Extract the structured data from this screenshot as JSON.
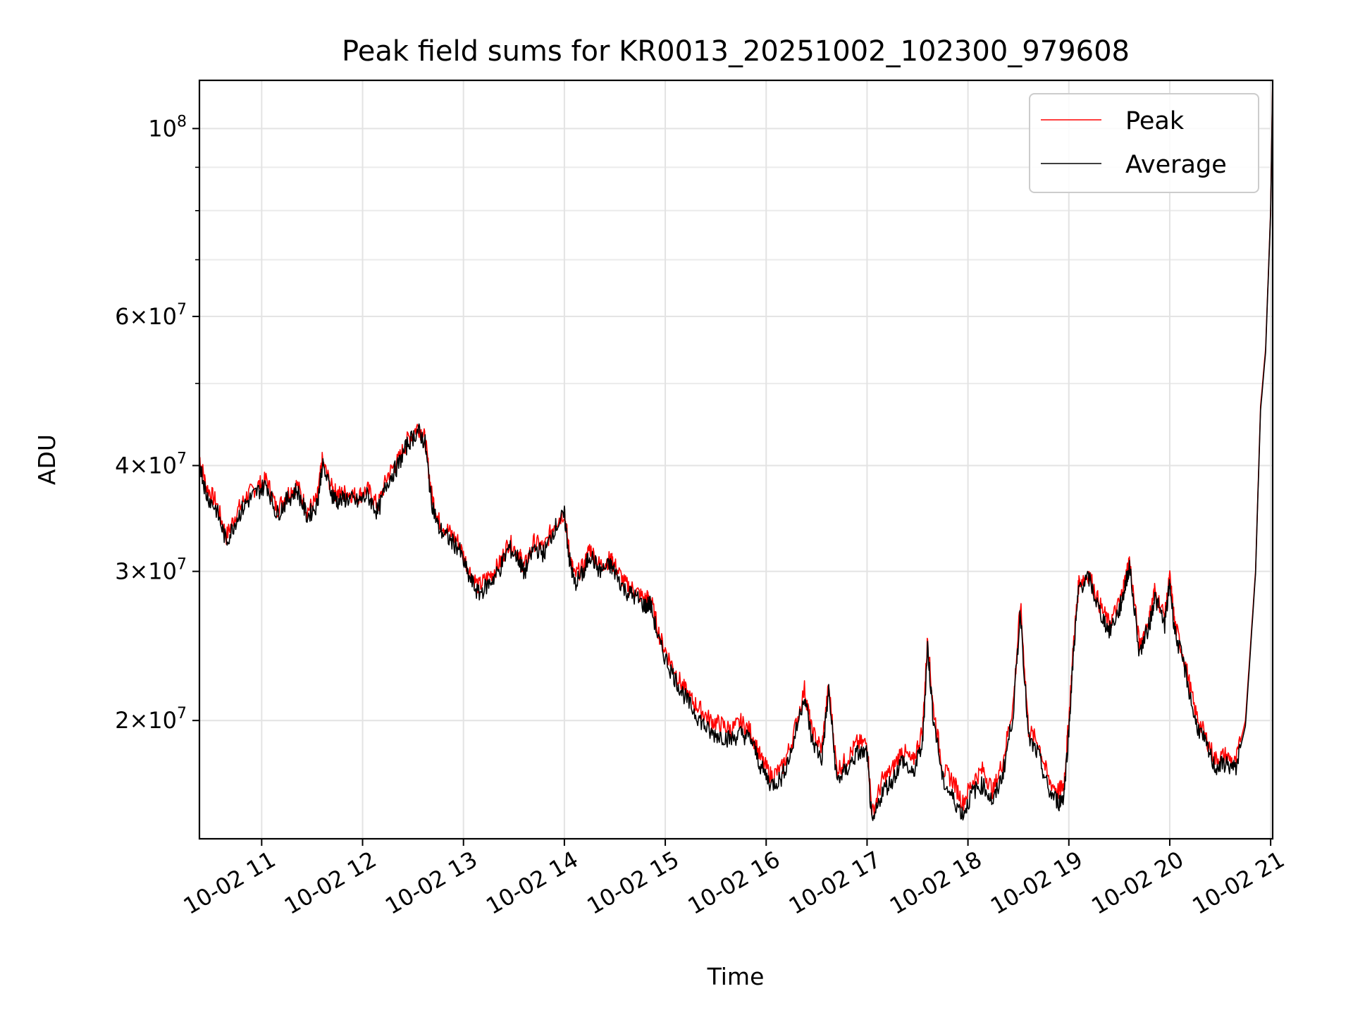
{
  "chart_data": {
    "type": "line",
    "title": "Peak field sums for KR0013_20251002_102300_979608",
    "xlabel": "Time",
    "ylabel": "ADU",
    "yscale": "log",
    "ylim": [
      14500000,
      114000000
    ],
    "xlim_hours": [
      10.383,
      21.02
    ],
    "x_ticks": [
      {
        "label": "10-02 11",
        "hour": 11
      },
      {
        "label": "10-02 12",
        "hour": 12
      },
      {
        "label": "10-02 13",
        "hour": 13
      },
      {
        "label": "10-02 14",
        "hour": 14
      },
      {
        "label": "10-02 15",
        "hour": 15
      },
      {
        "label": "10-02 16",
        "hour": 16
      },
      {
        "label": "10-02 17",
        "hour": 17
      },
      {
        "label": "10-02 18",
        "hour": 18
      },
      {
        "label": "10-02 19",
        "hour": 19
      },
      {
        "label": "10-02 20",
        "hour": 20
      },
      {
        "label": "10-02 21",
        "hour": 21
      }
    ],
    "y_major_ticks": [
      {
        "value": 20000000,
        "mantissa": "2",
        "exponent": "7"
      },
      {
        "value": 30000000,
        "mantissa": "3",
        "exponent": "7"
      },
      {
        "value": 40000000,
        "mantissa": "4",
        "exponent": "7"
      },
      {
        "value": 60000000,
        "mantissa": "6",
        "exponent": "7"
      },
      {
        "value": 100000000,
        "mantissa": "10",
        "exponent": "8"
      }
    ],
    "y_minor_ticks": [
      50000000,
      70000000,
      80000000,
      90000000
    ],
    "grid": true,
    "legend_position": "top-right",
    "series": [
      {
        "name": "Peak",
        "color": "#ff0000",
        "x_hours": [
          10.383,
          10.45,
          10.55,
          10.65,
          10.75,
          10.85,
          10.95,
          11.05,
          11.15,
          11.25,
          11.35,
          11.45,
          11.55,
          11.6,
          11.7,
          11.75,
          11.85,
          11.95,
          12.05,
          12.15,
          12.25,
          12.35,
          12.45,
          12.55,
          12.62,
          12.68,
          12.75,
          12.85,
          12.95,
          13.05,
          13.15,
          13.25,
          13.35,
          13.45,
          13.55,
          13.6,
          13.7,
          13.8,
          13.9,
          14.0,
          14.05,
          14.1,
          14.2,
          14.25,
          14.35,
          14.45,
          14.5,
          14.6,
          14.7,
          14.8,
          14.85,
          14.95,
          15.05,
          15.15,
          15.25,
          15.35,
          15.45,
          15.55,
          15.65,
          15.75,
          15.85,
          15.95,
          16.05,
          16.15,
          16.25,
          16.38,
          16.45,
          16.55,
          16.62,
          16.7,
          16.8,
          16.9,
          17.0,
          17.05,
          17.15,
          17.25,
          17.35,
          17.45,
          17.55,
          17.6,
          17.65,
          17.75,
          17.85,
          17.95,
          18.05,
          18.15,
          18.25,
          18.35,
          18.45,
          18.52,
          18.6,
          18.7,
          18.8,
          18.9,
          18.95,
          19.0,
          19.05,
          19.1,
          19.2,
          19.3,
          19.4,
          19.5,
          19.55,
          19.6,
          19.7,
          19.8,
          19.85,
          19.95,
          20.0,
          20.05,
          20.15,
          20.25,
          20.35,
          20.45,
          20.55,
          20.65,
          20.75,
          20.85,
          20.9,
          20.95,
          21.0,
          21.02
        ],
        "values": [
          41000000,
          37800000,
          36200000,
          33000000,
          35200000,
          36800000,
          37800000,
          38500000,
          35500000,
          37000000,
          38000000,
          35400000,
          36500000,
          40500000,
          37500000,
          37000000,
          37200000,
          36800000,
          37500000,
          35800000,
          39000000,
          40500000,
          43000000,
          44500000,
          43000000,
          37200000,
          34500000,
          33500000,
          32500000,
          30200000,
          28800000,
          29600000,
          30500000,
          32500000,
          31500000,
          30300000,
          32500000,
          32000000,
          34200000,
          35200000,
          31500000,
          29600000,
          30500000,
          32000000,
          30500000,
          31000000,
          30500000,
          29000000,
          28500000,
          27800000,
          28000000,
          25000000,
          23500000,
          22200000,
          21200000,
          20600000,
          20000000,
          19800000,
          19500000,
          19900000,
          19400000,
          18000000,
          17200000,
          17500000,
          18800000,
          21800000,
          19500000,
          18500000,
          22000000,
          17500000,
          18000000,
          18800000,
          18800000,
          15500000,
          17000000,
          17500000,
          18500000,
          17800000,
          19500000,
          25000000,
          21000000,
          17500000,
          17000000,
          16000000,
          17000000,
          17500000,
          16500000,
          18000000,
          21000000,
          27500000,
          19500000,
          18800000,
          17000000,
          16500000,
          16800000,
          20000000,
          25000000,
          29200000,
          29800000,
          27500000,
          26000000,
          27500000,
          29000000,
          31000000,
          24500000,
          26500000,
          28500000,
          26500000,
          29500000,
          26000000,
          23500000,
          20500000,
          19200000,
          18000000,
          18200000,
          17800000,
          20000000,
          30000000,
          47000000,
          55000000,
          80000000,
          115000000
        ]
      },
      {
        "name": "Average",
        "color": "#000000",
        "x_hours": [
          10.383,
          10.45,
          10.55,
          10.65,
          10.75,
          10.85,
          10.95,
          11.05,
          11.15,
          11.25,
          11.35,
          11.45,
          11.55,
          11.6,
          11.7,
          11.75,
          11.85,
          11.95,
          12.05,
          12.15,
          12.25,
          12.35,
          12.45,
          12.55,
          12.62,
          12.68,
          12.75,
          12.85,
          12.95,
          13.05,
          13.15,
          13.25,
          13.35,
          13.45,
          13.55,
          13.6,
          13.7,
          13.8,
          13.9,
          14.0,
          14.05,
          14.1,
          14.2,
          14.25,
          14.35,
          14.45,
          14.5,
          14.6,
          14.7,
          14.8,
          14.85,
          14.95,
          15.05,
          15.15,
          15.25,
          15.35,
          15.45,
          15.55,
          15.65,
          15.75,
          15.85,
          15.95,
          16.05,
          16.15,
          16.25,
          16.38,
          16.45,
          16.55,
          16.62,
          16.7,
          16.8,
          16.9,
          17.0,
          17.05,
          17.15,
          17.25,
          17.35,
          17.45,
          17.55,
          17.6,
          17.65,
          17.75,
          17.85,
          17.95,
          18.05,
          18.15,
          18.25,
          18.35,
          18.45,
          18.52,
          18.6,
          18.7,
          18.8,
          18.9,
          18.95,
          19.0,
          19.05,
          19.1,
          19.2,
          19.3,
          19.4,
          19.5,
          19.55,
          19.6,
          19.7,
          19.8,
          19.85,
          19.95,
          20.0,
          20.05,
          20.15,
          20.25,
          20.35,
          20.45,
          20.55,
          20.65,
          20.75,
          20.85,
          20.9,
          20.95,
          21.0,
          21.02
        ],
        "values": [
          40500000,
          37000000,
          35500000,
          32500000,
          34600000,
          36200000,
          37200000,
          38000000,
          35000000,
          36400000,
          37500000,
          34800000,
          36000000,
          40000000,
          37000000,
          36300000,
          36600000,
          36200000,
          36900000,
          35200000,
          38400000,
          40000000,
          42500000,
          44000000,
          42500000,
          36500000,
          33800000,
          32800000,
          32000000,
          29600000,
          28200000,
          29000000,
          30000000,
          32000000,
          31000000,
          29800000,
          32000000,
          31500000,
          33700000,
          35000000,
          31000000,
          29000000,
          30000000,
          31500000,
          30000000,
          30500000,
          30000000,
          28500000,
          28000000,
          27300000,
          27500000,
          24500000,
          23000000,
          21800000,
          20800000,
          20000000,
          19300000,
          19200000,
          19000000,
          19300000,
          19000000,
          17600000,
          16800000,
          17100000,
          18400000,
          21500000,
          19000000,
          18000000,
          21700000,
          17000000,
          17500000,
          18300000,
          18300000,
          15000000,
          16500000,
          17000000,
          18000000,
          17200000,
          18800000,
          24500000,
          20500000,
          17000000,
          16200000,
          15500000,
          16500000,
          16800000,
          16000000,
          17400000,
          20500000,
          27000000,
          19000000,
          18200000,
          16500000,
          16000000,
          16300000,
          19500000,
          24500000,
          28800000,
          29400000,
          27000000,
          25500000,
          27000000,
          28500000,
          30500000,
          24000000,
          26000000,
          28000000,
          26000000,
          29000000,
          25500000,
          23000000,
          20000000,
          18800000,
          17600000,
          17800000,
          17500000,
          19700000,
          29800000,
          46500000,
          54500000,
          79500000,
          114000000
        ]
      }
    ]
  }
}
